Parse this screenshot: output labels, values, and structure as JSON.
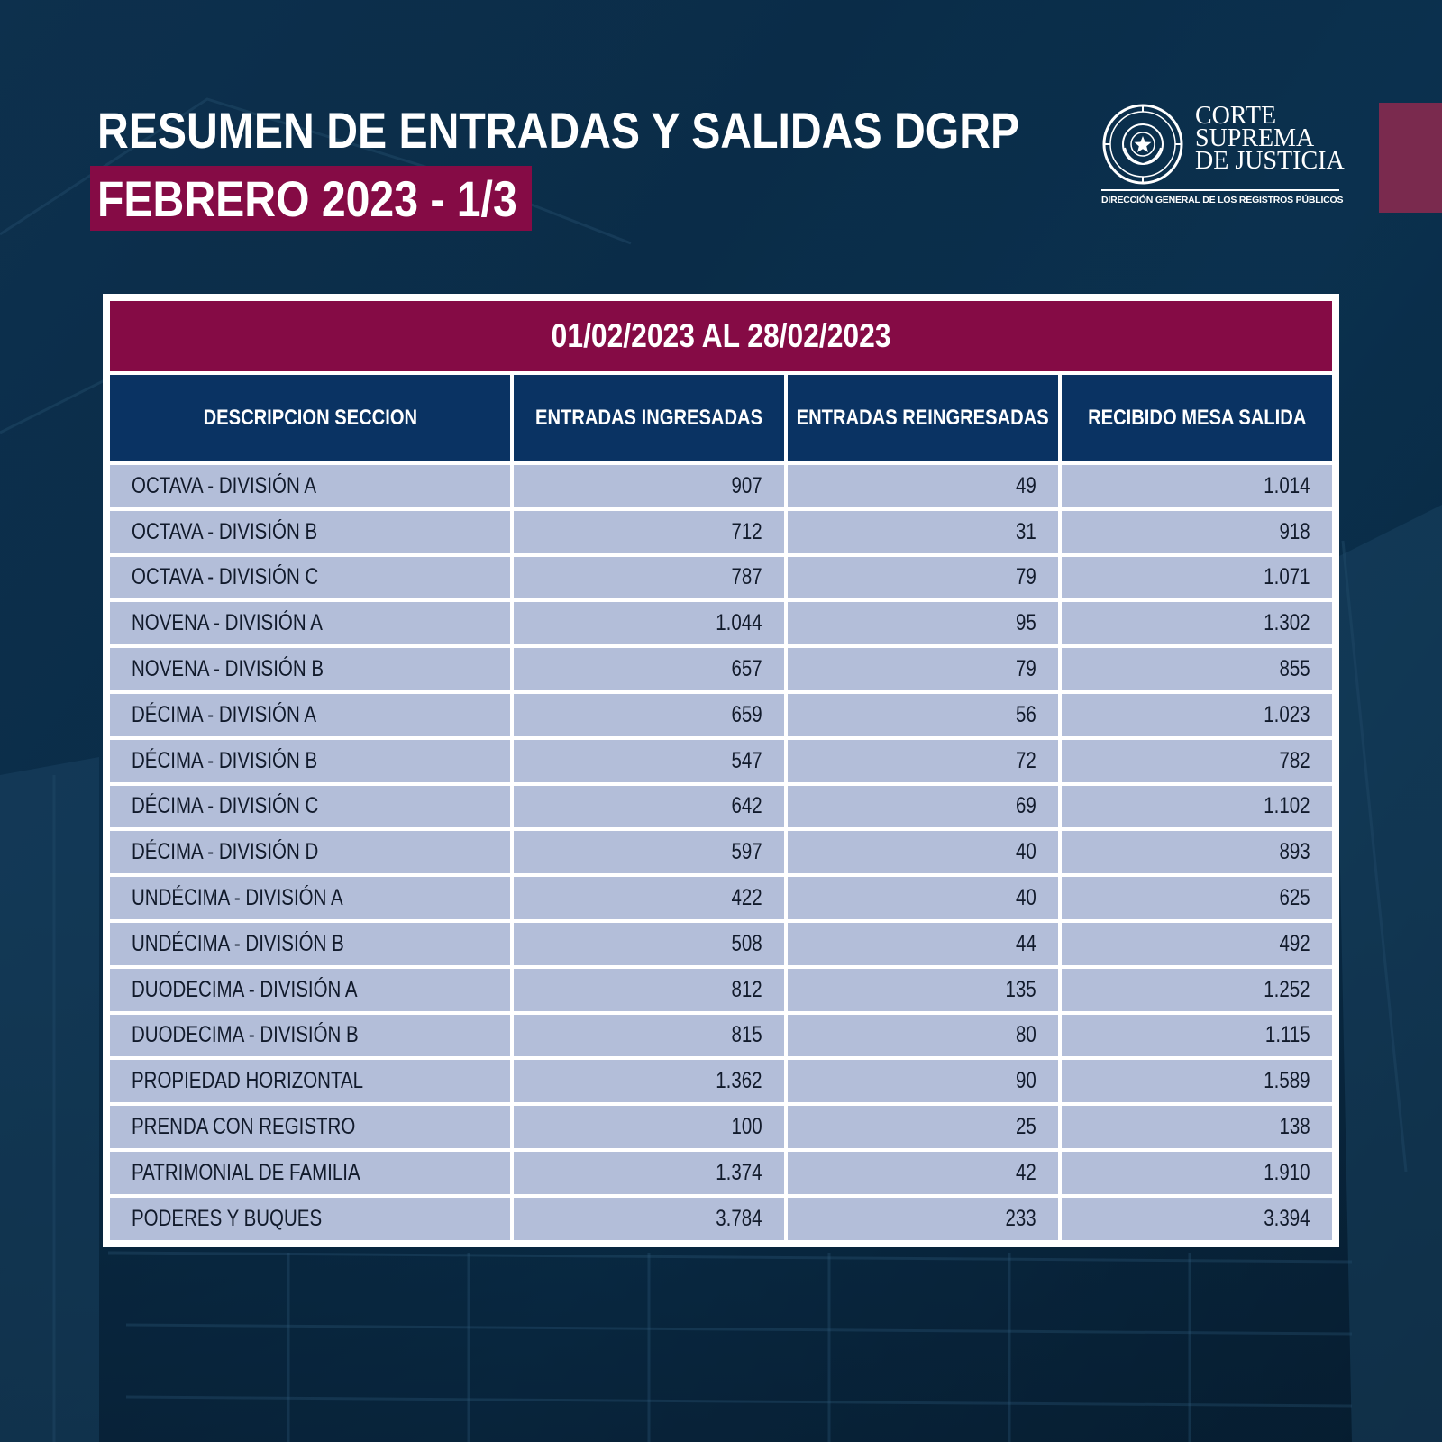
{
  "header": {
    "title": "RESUMEN DE ENTRADAS Y SALIDAS DGRP",
    "subtitle": "FEBRERO 2023 - 1/3"
  },
  "logo": {
    "name": "CORTE\nSUPREMA\nDE JUSTICIA",
    "seal_text": "REPÚBLICA DEL PARAGUAY",
    "subtitle": "DIRECCIÓN GENERAL DE LOS REGISTROS PÚBLICOS"
  },
  "table": {
    "period": "01/02/2023 AL 28/02/2023",
    "columns": [
      "DESCRIPCION SECCION",
      "ENTRADAS INGRESADAS",
      "ENTRADAS REINGRESADAS",
      "RECIBIDO MESA SALIDA"
    ],
    "rows": [
      [
        "OCTAVA - DIVISIÓN A",
        "907",
        "49",
        "1.014"
      ],
      [
        "OCTAVA - DIVISIÓN B",
        "712",
        "31",
        "918"
      ],
      [
        "OCTAVA - DIVISIÓN C",
        "787",
        "79",
        "1.071"
      ],
      [
        "NOVENA - DIVISIÓN A",
        "1.044",
        "95",
        "1.302"
      ],
      [
        "NOVENA - DIVISIÓN B",
        "657",
        "79",
        "855"
      ],
      [
        "DÉCIMA - DIVISIÓN A",
        "659",
        "56",
        "1.023"
      ],
      [
        "DÉCIMA - DIVISIÓN B",
        "547",
        "72",
        "782"
      ],
      [
        "DÉCIMA - DIVISIÓN C",
        "642",
        "69",
        "1.102"
      ],
      [
        "DÉCIMA - DIVISIÓN D",
        "597",
        "40",
        "893"
      ],
      [
        "UNDÉCIMA - DIVISIÓN A",
        "422",
        "40",
        "625"
      ],
      [
        "UNDÉCIMA - DIVISIÓN B",
        "508",
        "44",
        "492"
      ],
      [
        "DUODECIMA - DIVISIÓN A",
        "812",
        "135",
        "1.252"
      ],
      [
        "DUODECIMA - DIVISIÓN B",
        "815",
        "80",
        "1.115"
      ],
      [
        "PROPIEDAD HORIZONTAL",
        "1.362",
        "90",
        "1.589"
      ],
      [
        "PRENDA CON REGISTRO",
        "100",
        "25",
        "138"
      ],
      [
        "PATRIMONIAL DE FAMILIA",
        "1.374",
        "42",
        "1.910"
      ],
      [
        "PODERES Y BUQUES",
        "3.784",
        "233",
        "3.394"
      ]
    ]
  },
  "colors": {
    "background": "#0d3552",
    "accent": "#850b45",
    "header_cell": "#0a3363",
    "row_cell": "#b3bed9"
  }
}
